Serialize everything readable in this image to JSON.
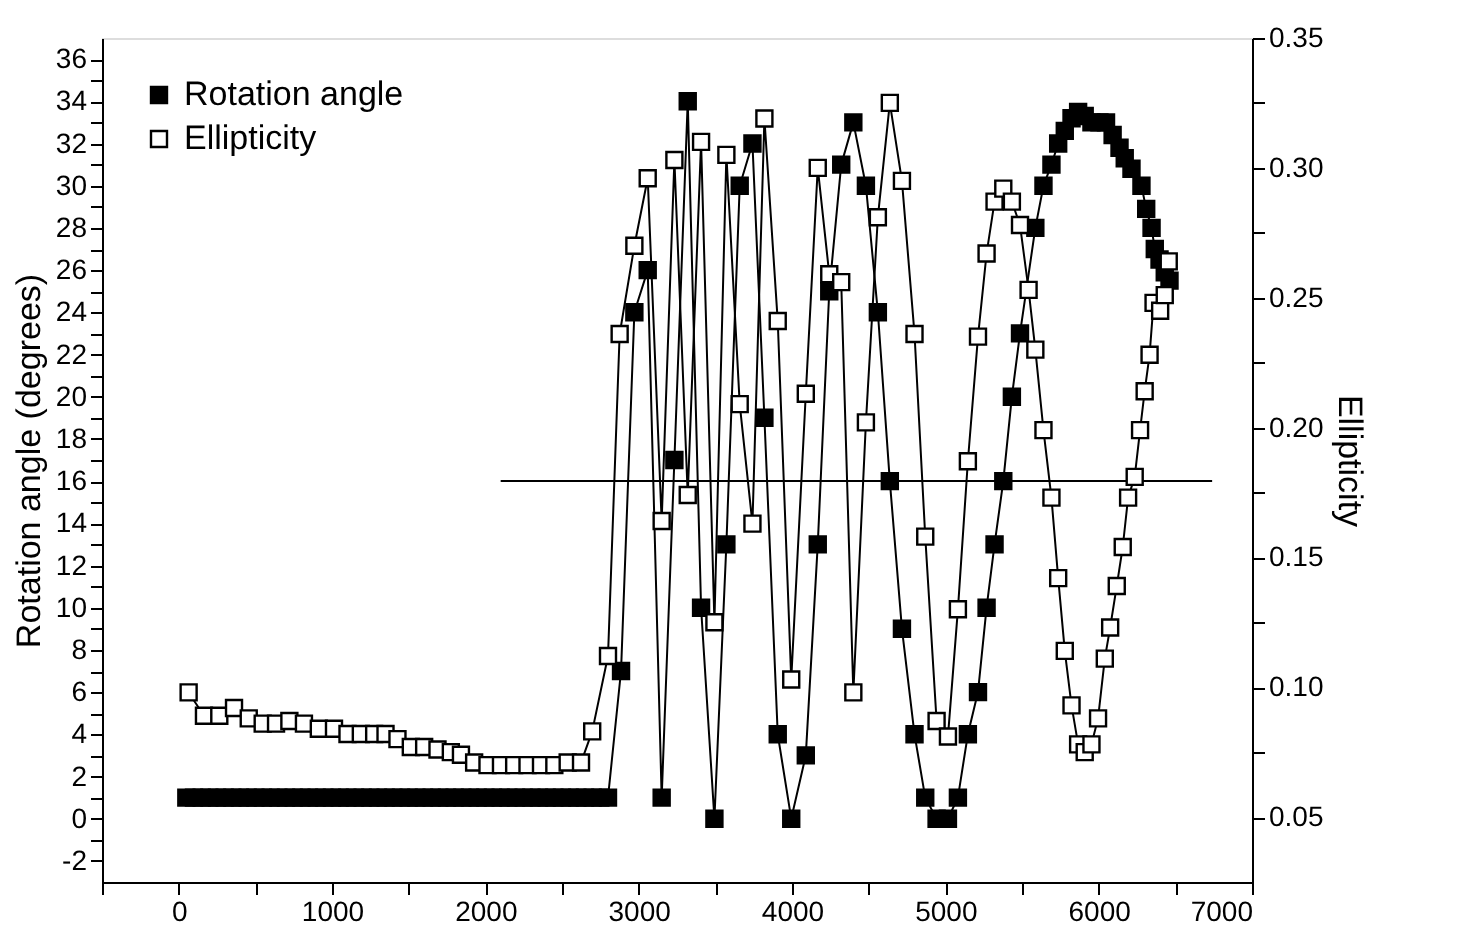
{
  "chart_data": {
    "type": "line",
    "xlabel": null,
    "ylabel": "Rotation angle (degrees)",
    "y2label": "Ellipticity",
    "xlim": [
      -500,
      7000
    ],
    "ylim": [
      -3,
      37
    ],
    "y2lim": [
      0.025,
      0.35
    ],
    "xticks": [
      {
        "value": -500,
        "label": null
      },
      0,
      {
        "value": 500,
        "label": null
      },
      1000,
      {
        "value": 1500,
        "label": null
      },
      2000,
      {
        "value": 2500,
        "label": null
      },
      3000,
      {
        "value": 3500,
        "label": null
      },
      4000,
      {
        "value": 4500,
        "label": null
      },
      5000,
      {
        "value": 5500,
        "label": null
      },
      6000,
      {
        "value": 6500,
        "label": null
      },
      7000
    ],
    "yticks": [
      -2,
      {
        "value": -1,
        "label": null
      },
      0,
      {
        "value": 1,
        "label": null
      },
      2,
      {
        "value": 3,
        "label": null
      },
      4,
      {
        "value": 5,
        "label": null
      },
      6,
      {
        "value": 7,
        "label": null
      },
      8,
      {
        "value": 9,
        "label": null
      },
      10,
      {
        "value": 11,
        "label": null
      },
      12,
      {
        "value": 13,
        "label": null
      },
      14,
      {
        "value": 15,
        "label": null
      },
      16,
      {
        "value": 17,
        "label": null
      },
      18,
      {
        "value": 19,
        "label": null
      },
      20,
      {
        "value": 21,
        "label": null
      },
      22,
      {
        "value": 23,
        "label": null
      },
      24,
      {
        "value": 25,
        "label": null
      },
      26,
      {
        "value": 27,
        "label": null
      },
      28,
      {
        "value": 29,
        "label": null
      },
      30,
      {
        "value": 31,
        "label": null
      },
      32,
      {
        "value": 33,
        "label": null
      },
      34,
      {
        "value": 35,
        "label": null
      },
      36
    ],
    "y2ticks": [
      {
        "value": 0.05,
        "label": "0.05"
      },
      {
        "value": 0.075,
        "label": null
      },
      {
        "value": 0.1,
        "label": "0.10"
      },
      {
        "value": 0.125,
        "label": null
      },
      {
        "value": 0.15,
        "label": "0.15"
      },
      {
        "value": 0.175,
        "label": null
      },
      {
        "value": 0.2,
        "label": "0.20"
      },
      {
        "value": 0.225,
        "label": null
      },
      {
        "value": 0.25,
        "label": "0.25"
      },
      {
        "value": 0.275,
        "label": null
      },
      {
        "value": 0.3,
        "label": "0.30"
      },
      {
        "value": 0.325,
        "label": null
      },
      {
        "value": 0.35,
        "label": "0.35"
      }
    ],
    "grid": false,
    "legend": "top left",
    "marker": "square",
    "line_style": "solid",
    "series": [
      {
        "name": "Rotation angle",
        "color": "#000000",
        "x": [
          50,
          100,
          150,
          200,
          250,
          300,
          350,
          400,
          450,
          500,
          550,
          600,
          650,
          700,
          750,
          800,
          850,
          900,
          950,
          1000,
          1050,
          1100,
          1150,
          1200,
          1250,
          1300,
          1350,
          1400,
          1450,
          1500,
          1550,
          1600,
          1650,
          1700,
          1750,
          1800,
          1850,
          1900,
          1950,
          2000,
          2050,
          2100,
          2150,
          2200,
          2250,
          2300,
          2350,
          2400,
          2450,
          2500,
          2550,
          2600,
          2650,
          2700,
          2750,
          2800,
          2885,
          2972,
          3059,
          3150,
          3233,
          3320,
          3407,
          3494,
          3572,
          3659,
          3742,
          3820,
          3907,
          3995,
          4090,
          4168,
          4243,
          4321,
          4400,
          4482,
          4560,
          4638,
          4717,
          4799,
          4869,
          4943,
          5017,
          5082,
          5147,
          5213,
          5269,
          5321,
          5378,
          5434,
          5487,
          5587,
          5640,
          5692,
          5736,
          5779,
          5823,
          5866,
          5909,
          5953,
          6005,
          6048,
          6091,
          6136,
          6170,
          6214,
          6279,
          6310,
          6345,
          6366,
          6397,
          6431,
          6462
        ],
        "values": [
          1,
          1,
          1,
          1,
          1,
          1,
          1,
          1,
          1,
          1,
          1,
          1,
          1,
          1,
          1,
          1,
          1,
          1,
          1,
          1,
          1,
          1,
          1,
          1,
          1,
          1,
          1,
          1,
          1,
          1,
          1,
          1,
          1,
          1,
          1,
          1,
          1,
          1,
          1,
          1,
          1,
          1,
          1,
          1,
          1,
          1,
          1,
          1,
          1,
          1,
          1,
          1,
          1,
          1,
          1,
          1,
          7,
          24,
          26,
          1,
          17,
          34,
          10,
          0,
          13,
          30,
          32,
          19,
          4,
          0,
          3,
          13,
          25,
          31,
          33,
          30,
          24,
          16,
          9,
          4,
          1,
          0,
          0,
          1,
          4,
          6,
          10,
          13,
          16,
          20,
          23,
          28,
          30,
          31,
          32,
          32.6,
          33.2,
          33.5,
          33.3,
          33,
          33,
          33,
          32.4,
          31.8,
          31.3,
          30.8,
          30,
          28.9,
          28,
          27,
          26.5,
          25.9,
          25.5
        ]
      },
      {
        "name": "Ellipticity",
        "color": "#000000",
        "axis": "y2",
        "x": [
          65,
          165,
          265,
          361,
          457,
          548,
          635,
          722,
          817,
          914,
          1013,
          1101,
          1188,
          1275,
          1349,
          1427,
          1514,
          1601,
          1688,
          1775,
          1841,
          1927,
          2014,
          2102,
          2188,
          2275,
          2363,
          2450,
          2537,
          2624,
          2697,
          2800,
          2876,
          2972,
          3059,
          3150,
          3233,
          3320,
          3407,
          3494,
          3572,
          3659,
          3742,
          3820,
          3907,
          3995,
          4090,
          4168,
          4243,
          4321,
          4400,
          4482,
          4560,
          4638,
          4717,
          4799,
          4869,
          4943,
          5017,
          5082,
          5147,
          5213,
          5269,
          5321,
          5378,
          5434,
          5487,
          5543,
          5587,
          5640,
          5692,
          5736,
          5779,
          5823,
          5866,
          5909,
          5953,
          5996,
          6040,
          6075,
          6118,
          6157,
          6192,
          6235,
          6270,
          6300,
          6332,
          6358,
          6401,
          6431,
          6457
        ],
        "values": [
          0.098,
          0.089,
          0.089,
          0.092,
          0.088,
          0.086,
          0.086,
          0.087,
          0.086,
          0.084,
          0.084,
          0.082,
          0.082,
          0.082,
          0.082,
          0.08,
          0.077,
          0.077,
          0.076,
          0.075,
          0.074,
          0.071,
          0.07,
          0.07,
          0.07,
          0.07,
          0.07,
          0.07,
          0.071,
          0.071,
          0.083,
          0.112,
          0.236,
          0.27,
          0.296,
          0.164,
          0.303,
          0.174,
          0.31,
          0.125,
          0.305,
          0.209,
          0.163,
          0.319,
          0.241,
          0.103,
          0.213,
          0.3,
          0.259,
          0.256,
          0.098,
          0.202,
          0.281,
          0.325,
          0.295,
          0.236,
          0.158,
          0.087,
          0.081,
          0.13,
          0.187,
          0.235,
          0.267,
          0.287,
          0.292,
          0.287,
          0.278,
          0.253,
          0.23,
          0.199,
          0.173,
          0.142,
          0.114,
          0.093,
          0.078,
          0.075,
          0.078,
          0.088,
          0.111,
          0.123,
          0.139,
          0.154,
          0.173,
          0.181,
          0.199,
          0.214,
          0.228,
          0.248,
          0.245,
          0.251,
          0.264
        ]
      },
      {
        "color": "#000000",
        "marker": "none",
        "x": [
          2100,
          6740
        ],
        "values": [
          16,
          16
        ]
      }
    ]
  }
}
